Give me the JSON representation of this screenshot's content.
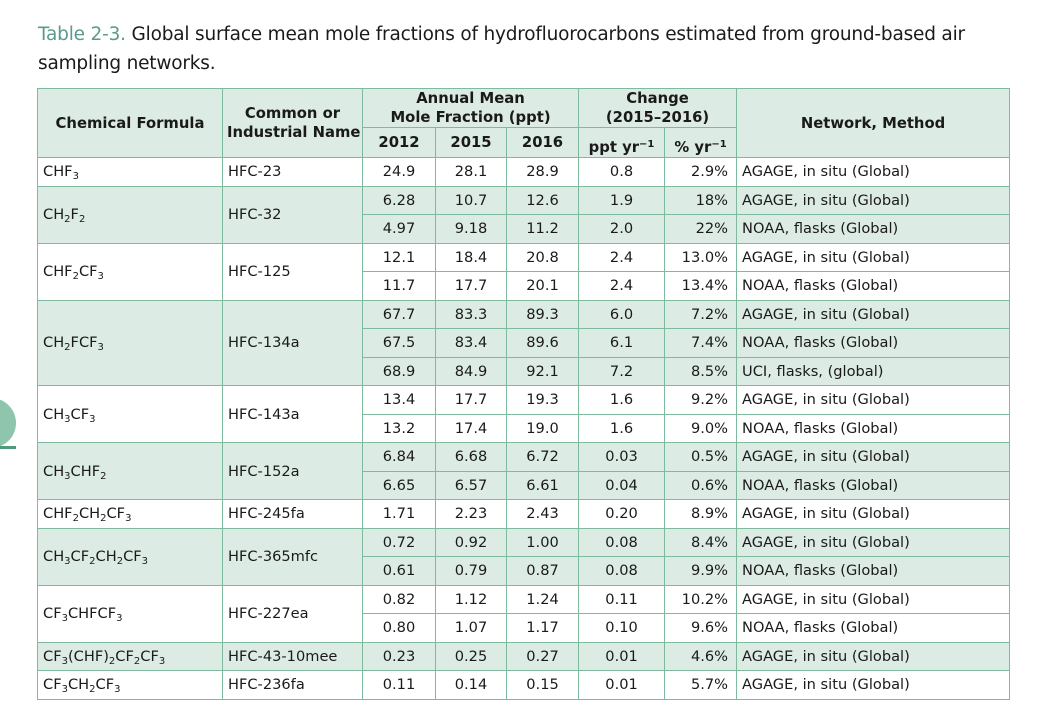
{
  "caption": {
    "label": "Table 2-3.",
    "text": " Global surface mean mole fractions of hydrofluorocarbons estimated from ground-based air sampling networks."
  },
  "header": {
    "chemical_formula": "Chemical Formula",
    "common_name_line1": "Common or",
    "common_name_line2": "Industrial Name",
    "annual_mean_line1": "Annual Mean",
    "annual_mean_line2": "Mole Fraction (ppt)",
    "year_2012": "2012",
    "year_2015": "2015",
    "year_2016": "2016",
    "change_line1": "Change",
    "change_line2": "(2015–2016)",
    "unit_ppt": "ppt yr",
    "unit_pct": "% yr",
    "unit_exp": "−1",
    "network": "Network, Method"
  },
  "groups": [
    {
      "formula": [
        "CHF",
        "3"
      ],
      "name": "HFC-23",
      "shaded": false,
      "rows": [
        {
          "y2012": "24.9",
          "y2015": "28.1",
          "y2016": "28.9",
          "ppt": "0.8",
          "pct": "2.9%",
          "network": "AGAGE, in situ (Global)"
        }
      ]
    },
    {
      "formula": [
        "CH",
        "2",
        "F",
        "2"
      ],
      "name": "HFC-32",
      "shaded": true,
      "rows": [
        {
          "y2012": "6.28",
          "y2015": "10.7",
          "y2016": "12.6",
          "ppt": "1.9",
          "pct": "18%",
          "network": "AGAGE, in situ (Global)"
        },
        {
          "y2012": "4.97",
          "y2015": "9.18",
          "y2016": "11.2",
          "ppt": "2.0",
          "pct": "22%",
          "network": "NOAA, flasks (Global)"
        }
      ]
    },
    {
      "formula": [
        "CHF",
        "2",
        "CF",
        "3"
      ],
      "name": "HFC-125",
      "shaded": false,
      "rows": [
        {
          "y2012": "12.1",
          "y2015": "18.4",
          "y2016": "20.8",
          "ppt": "2.4",
          "pct": "13.0%",
          "network": "AGAGE, in situ (Global)"
        },
        {
          "y2012": "11.7",
          "y2015": "17.7",
          "y2016": "20.1",
          "ppt": "2.4",
          "pct": "13.4%",
          "network": "NOAA, flasks (Global)"
        }
      ]
    },
    {
      "formula": [
        "CH",
        "2",
        "FCF",
        "3"
      ],
      "name": "HFC-134a",
      "shaded": true,
      "rows": [
        {
          "y2012": "67.7",
          "y2015": "83.3",
          "y2016": "89.3",
          "ppt": "6.0",
          "pct": "7.2%",
          "network": "AGAGE, in situ (Global)"
        },
        {
          "y2012": "67.5",
          "y2015": "83.4",
          "y2016": "89.6",
          "ppt": "6.1",
          "pct": "7.4%",
          "network": "NOAA, flasks (Global)"
        },
        {
          "y2012": "68.9",
          "y2015": "84.9",
          "y2016": "92.1",
          "ppt": "7.2",
          "pct": "8.5%",
          "network": "UCI, flasks, (global)"
        }
      ]
    },
    {
      "formula": [
        "CH",
        "3",
        "CF",
        "3"
      ],
      "name": "HFC-143a",
      "shaded": false,
      "rows": [
        {
          "y2012": "13.4",
          "y2015": "17.7",
          "y2016": "19.3",
          "ppt": "1.6",
          "pct": "9.2%",
          "network": "AGAGE, in situ (Global)"
        },
        {
          "y2012": "13.2",
          "y2015": "17.4",
          "y2016": "19.0",
          "ppt": "1.6",
          "pct": "9.0%",
          "network": "NOAA, flasks (Global)"
        }
      ]
    },
    {
      "formula": [
        "CH",
        "3",
        "CHF",
        "2"
      ],
      "name": "HFC-152a",
      "shaded": true,
      "rows": [
        {
          "y2012": "6.84",
          "y2015": "6.68",
          "y2016": "6.72",
          "ppt": "0.03",
          "pct": "0.5%",
          "network": "AGAGE, in situ (Global)"
        },
        {
          "y2012": "6.65",
          "y2015": "6.57",
          "y2016": "6.61",
          "ppt": "0.04",
          "pct": "0.6%",
          "network": "NOAA, flasks (Global)"
        }
      ]
    },
    {
      "formula": [
        "CHF",
        "2",
        "CH",
        "2",
        "CF",
        "3"
      ],
      "name": "HFC-245fa",
      "shaded": false,
      "rows": [
        {
          "y2012": "1.71",
          "y2015": "2.23",
          "y2016": "2.43",
          "ppt": "0.20",
          "pct": "8.9%",
          "network": "AGAGE, in situ (Global)"
        }
      ]
    },
    {
      "formula": [
        "CH",
        "3",
        "CF",
        "2",
        "CH",
        "2",
        "CF",
        "3"
      ],
      "name": "HFC-365mfc",
      "shaded": true,
      "rows": [
        {
          "y2012": "0.72",
          "y2015": "0.92",
          "y2016": "1.00",
          "ppt": "0.08",
          "pct": "8.4%",
          "network": "AGAGE, in situ (Global)"
        },
        {
          "y2012": "0.61",
          "y2015": "0.79",
          "y2016": "0.87",
          "ppt": "0.08",
          "pct": "9.9%",
          "network": "NOAA, flasks (Global)"
        }
      ]
    },
    {
      "formula": [
        "CF",
        "3",
        "CHFCF",
        "3"
      ],
      "name": "HFC-227ea",
      "shaded": false,
      "rows": [
        {
          "y2012": "0.82",
          "y2015": "1.12",
          "y2016": "1.24",
          "ppt": "0.11",
          "pct": "10.2%",
          "network": "AGAGE, in situ (Global)"
        },
        {
          "y2012": "0.80",
          "y2015": "1.07",
          "y2016": "1.17",
          "ppt": "0.10",
          "pct": "9.6%",
          "network": "NOAA, flasks (Global)"
        }
      ]
    },
    {
      "formula": [
        "CF",
        "3",
        "(CHF)",
        "2",
        "CF",
        "2",
        "CF",
        "3"
      ],
      "name": "HFC-43-10mee",
      "shaded": true,
      "rows": [
        {
          "y2012": "0.23",
          "y2015": "0.25",
          "y2016": "0.27",
          "ppt": "0.01",
          "pct": "4.6%",
          "network": "AGAGE, in situ (Global)"
        }
      ]
    },
    {
      "formula": [
        "CF",
        "3",
        "CH",
        "2",
        "CF",
        "3"
      ],
      "name": "HFC-236fa",
      "shaded": false,
      "rows": [
        {
          "y2012": "0.11",
          "y2015": "0.14",
          "y2016": "0.15",
          "ppt": "0.01",
          "pct": "5.7%",
          "network": "AGAGE, in situ (Global)"
        }
      ]
    }
  ]
}
